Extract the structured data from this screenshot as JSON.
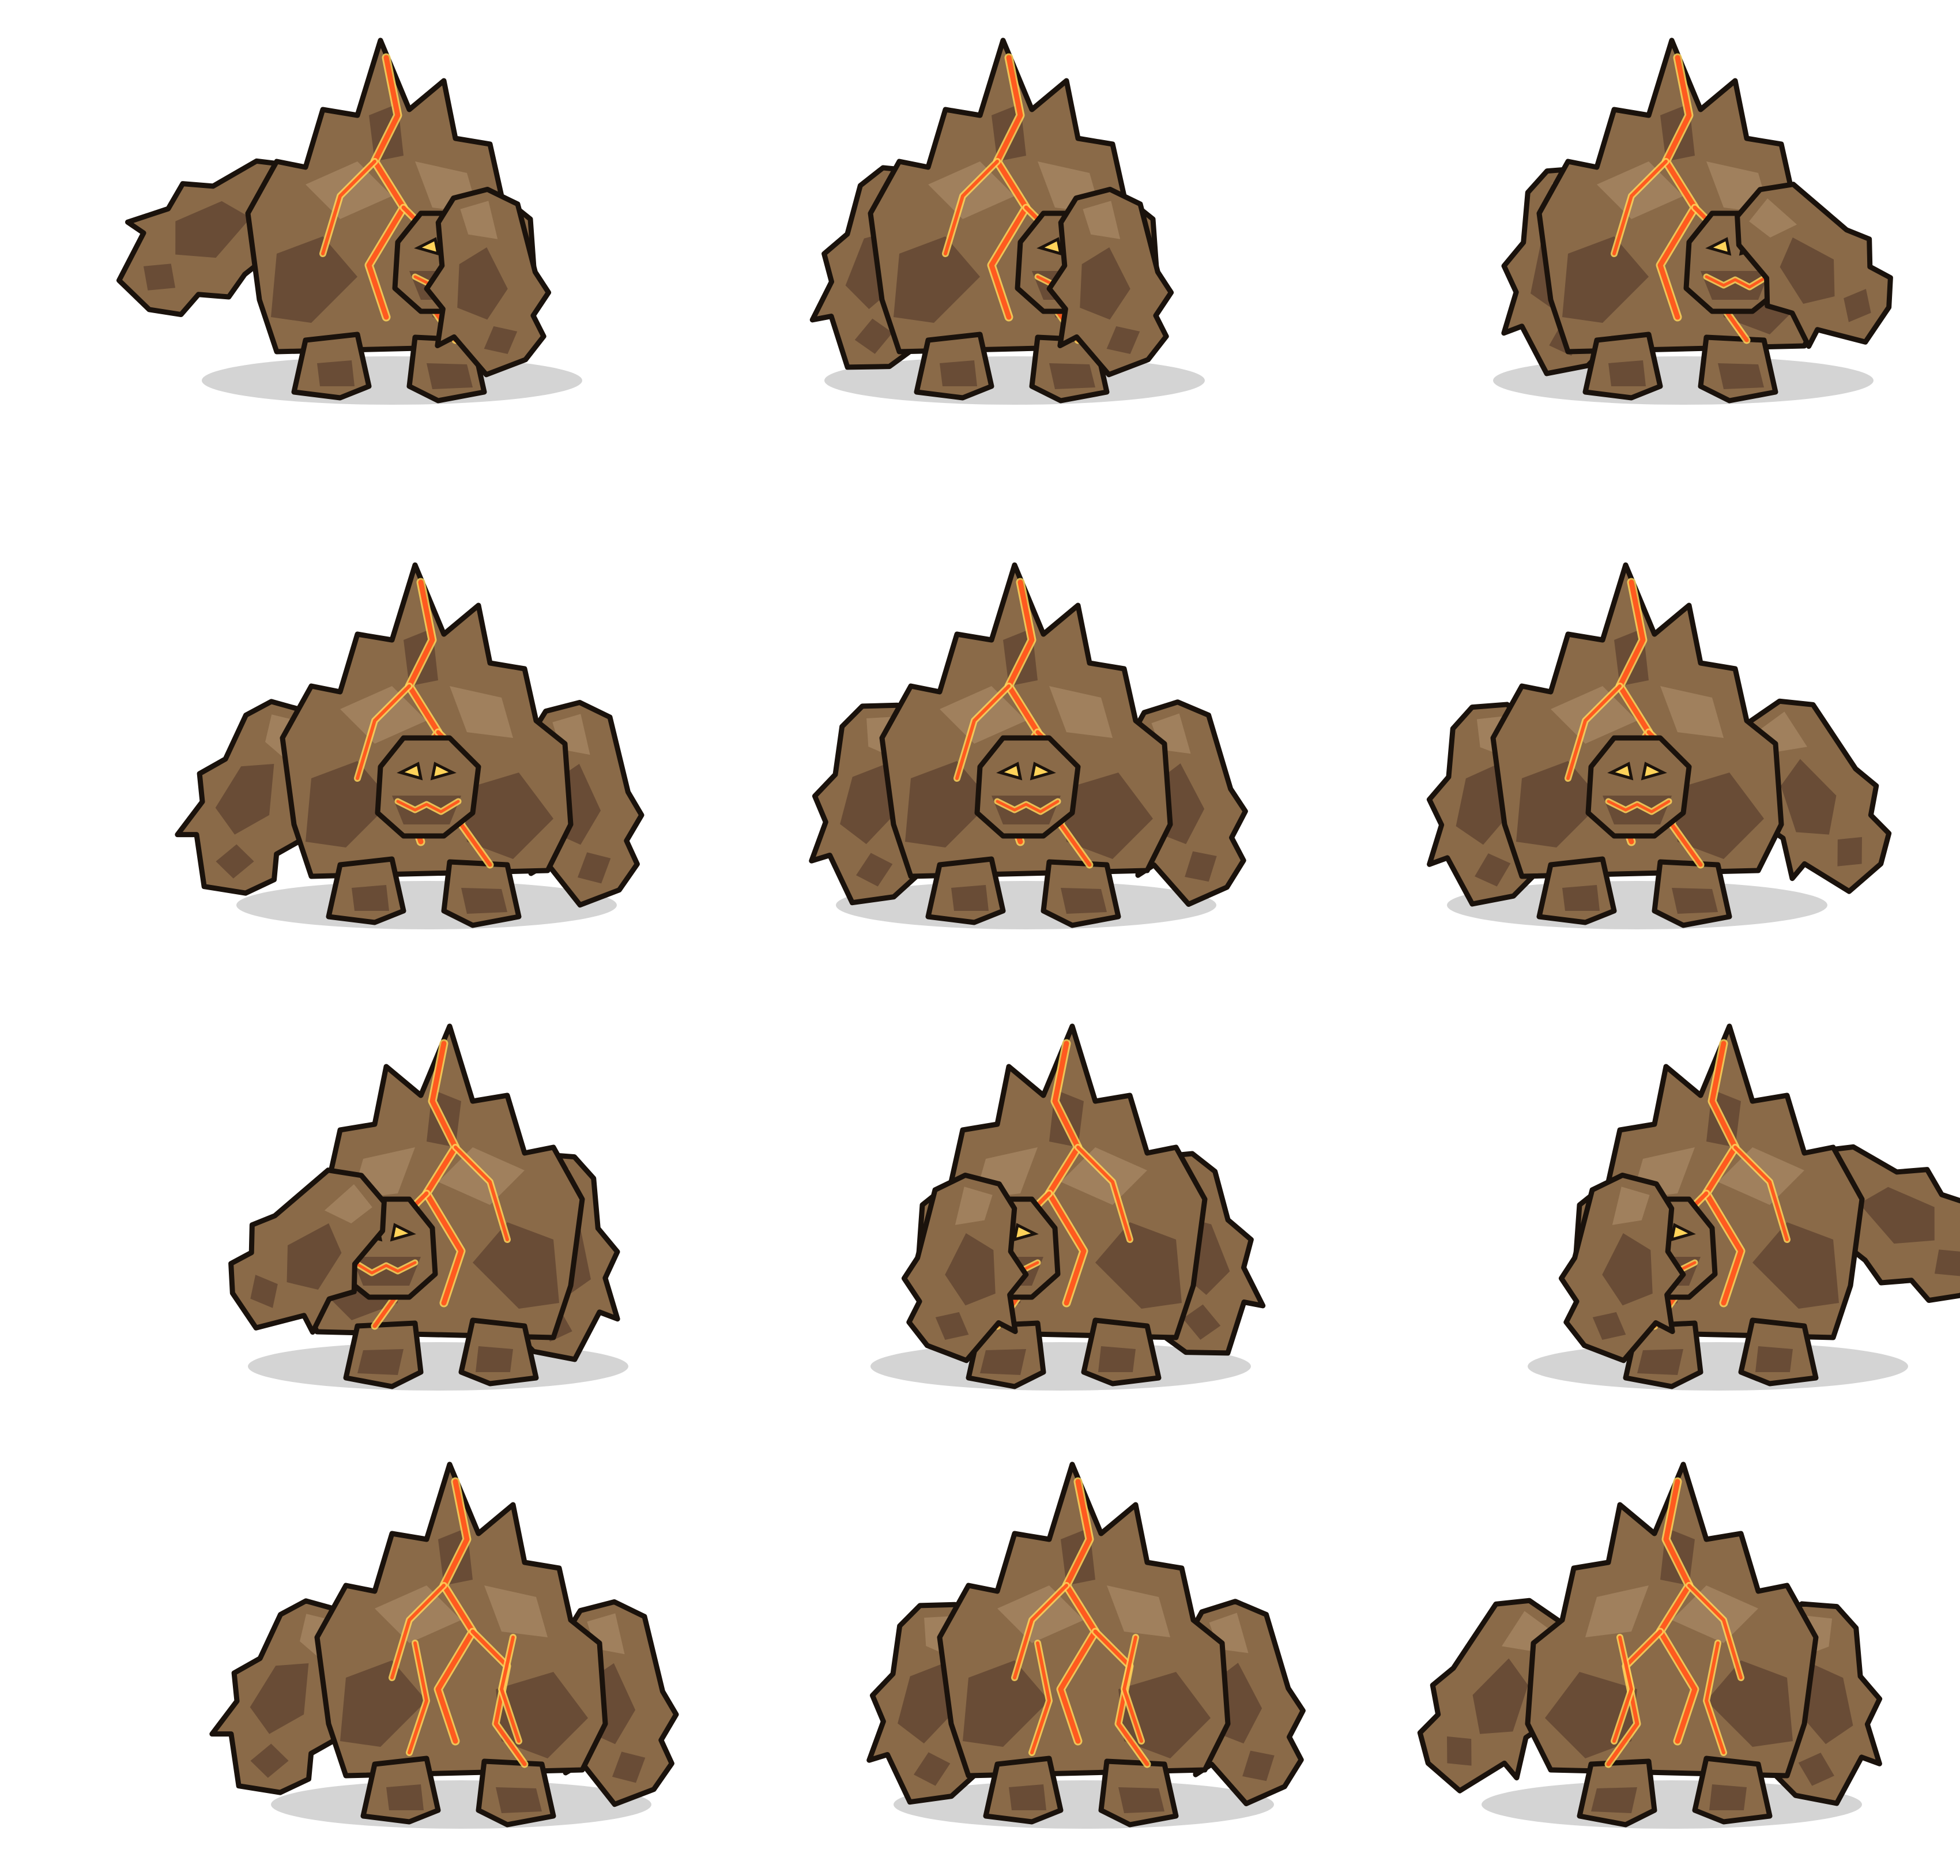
{
  "sprite_sheet": {
    "character": "lava-rock-golem",
    "rows": 4,
    "columns": 3,
    "colors": {
      "background": "#ffffff",
      "rock": "#8a6a48",
      "rock_shadow": "#5e4330",
      "rock_highlight": "#a98a66",
      "outline": "#1a120c",
      "lava": "#ff5a1f",
      "lava_glow": "#ffd35a",
      "ground_shadow": "#c9c9c9"
    },
    "frames": [
      {
        "row": 0,
        "col": 0,
        "facing": "side",
        "pose": "arm-swing-back",
        "flip": false
      },
      {
        "row": 0,
        "col": 1,
        "facing": "side",
        "pose": "idle",
        "flip": false
      },
      {
        "row": 0,
        "col": 2,
        "facing": "side",
        "pose": "arm-forward",
        "flip": false
      },
      {
        "row": 1,
        "col": 0,
        "facing": "front",
        "pose": "arms-out-right",
        "flip": false
      },
      {
        "row": 1,
        "col": 1,
        "facing": "front",
        "pose": "idle",
        "flip": false
      },
      {
        "row": 1,
        "col": 2,
        "facing": "front",
        "pose": "arms-out-left",
        "flip": false
      },
      {
        "row": 2,
        "col": 0,
        "facing": "side",
        "pose": "arm-forward",
        "flip": true
      },
      {
        "row": 2,
        "col": 1,
        "facing": "side",
        "pose": "idle",
        "flip": true
      },
      {
        "row": 2,
        "col": 2,
        "facing": "side",
        "pose": "arm-swing-back",
        "flip": true
      },
      {
        "row": 3,
        "col": 0,
        "facing": "back",
        "pose": "arms-out-right",
        "flip": false
      },
      {
        "row": 3,
        "col": 1,
        "facing": "back",
        "pose": "idle",
        "flip": false
      },
      {
        "row": 3,
        "col": 2,
        "facing": "back",
        "pose": "arms-out-left",
        "flip": true
      }
    ]
  }
}
